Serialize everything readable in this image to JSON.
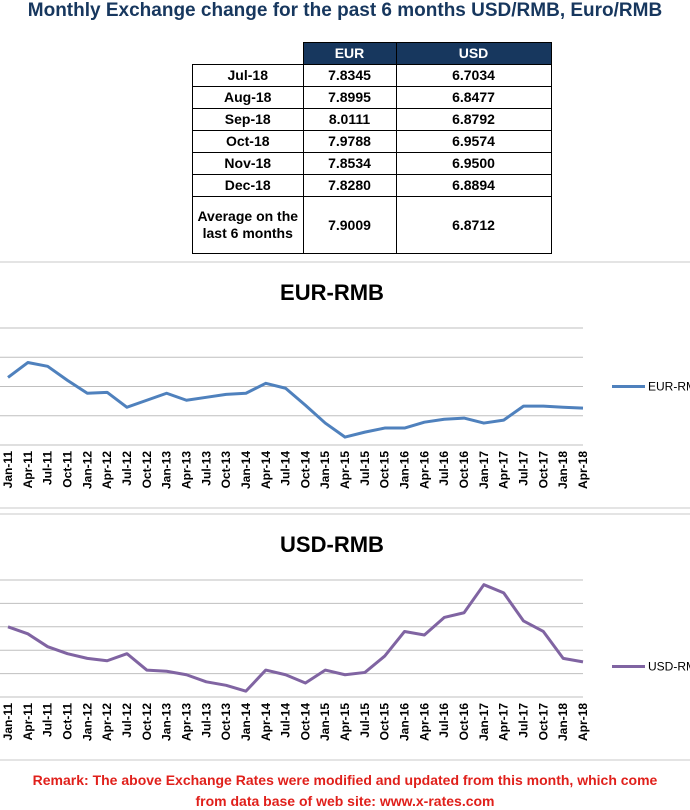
{
  "title": "Monthly Exchange change for the past 6 months USD/RMB, Euro/RMB",
  "table": {
    "header": [
      "EUR",
      "USD"
    ],
    "rows": [
      [
        "Jul-18",
        "7.8345",
        "6.7034"
      ],
      [
        "Aug-18",
        "7.8995",
        "6.8477"
      ],
      [
        "Sep-18",
        "8.0111",
        "6.8792"
      ],
      [
        "Oct-18",
        "7.9788",
        "6.9574"
      ],
      [
        "Nov-18",
        "7.8534",
        "6.9500"
      ],
      [
        "Dec-18",
        "7.8280",
        "6.8894"
      ],
      [
        "Average on the last 6 months",
        "7.9009",
        "6.8712"
      ]
    ]
  },
  "chart_data": [
    {
      "type": "line",
      "title": "EUR-RMB",
      "categories": [
        "Jan-11",
        "Apr-11",
        "Jul-11",
        "Oct-11",
        "Jan-12",
        "Apr-12",
        "Jul-12",
        "Oct-12",
        "Jan-13",
        "Apr-13",
        "Jul-13",
        "Oct-13",
        "Jan-14",
        "Apr-14",
        "Jul-14",
        "Oct-14",
        "Jan-15",
        "Apr-15",
        "Jul-15",
        "Oct-15",
        "Jan-16",
        "Apr-16",
        "Jul-16",
        "Oct-16",
        "Jan-17",
        "Apr-17",
        "Jul-17",
        "Oct-17",
        "Jan-18",
        "Apr-18"
      ],
      "series": [
        {
          "name": "EUR-RMB",
          "color": "#4f81bd",
          "values": [
            8.81,
            9.32,
            9.19,
            8.71,
            8.27,
            8.3,
            7.79,
            8.03,
            8.27,
            8.03,
            8.13,
            8.23,
            8.27,
            8.61,
            8.44,
            7.86,
            7.25,
            6.77,
            6.94,
            7.08,
            7.08,
            7.28,
            7.38,
            7.42,
            7.25,
            7.35,
            7.83,
            7.83,
            7.79,
            7.76
          ]
        }
      ],
      "ylim": [
        6.5,
        10.5
      ],
      "yticks": [
        6.5,
        7.5,
        8.5,
        9.5,
        10.5
      ],
      "grid": true,
      "legend": "right"
    },
    {
      "type": "line",
      "title": "USD-RMB",
      "categories": [
        "Jan-11",
        "Apr-11",
        "Jul-11",
        "Oct-11",
        "Jan-12",
        "Apr-12",
        "Jul-12",
        "Oct-12",
        "Jan-13",
        "Apr-13",
        "Jul-13",
        "Oct-13",
        "Jan-14",
        "Apr-14",
        "Jul-14",
        "Oct-14",
        "Jan-15",
        "Apr-15",
        "Jul-15",
        "Oct-15",
        "Jan-16",
        "Apr-16",
        "Jul-16",
        "Oct-16",
        "Jan-17",
        "Apr-17",
        "Jul-17",
        "Oct-17",
        "Jan-18",
        "Apr-18"
      ],
      "series": [
        {
          "name": "USD-RMB",
          "color": "#8064a2",
          "values": [
            6.6,
            6.54,
            6.43,
            6.37,
            6.33,
            6.31,
            6.37,
            6.23,
            6.22,
            6.19,
            6.13,
            6.1,
            6.05,
            6.23,
            6.19,
            6.12,
            6.23,
            6.19,
            6.21,
            6.35,
            6.56,
            6.53,
            6.68,
            6.72,
            6.96,
            6.89,
            6.65,
            6.56,
            6.33,
            6.3
          ]
        }
      ],
      "ylim": [
        6.0,
        7.0
      ],
      "yticks": [
        6.0,
        6.2,
        6.4,
        6.6,
        6.8,
        7.0
      ],
      "grid": true,
      "legend": "right"
    }
  ],
  "remark": [
    "Remark: The above Exchange Rates were modified and updated from this month, which come",
    "from data base of web site: www.x-rates.com"
  ]
}
